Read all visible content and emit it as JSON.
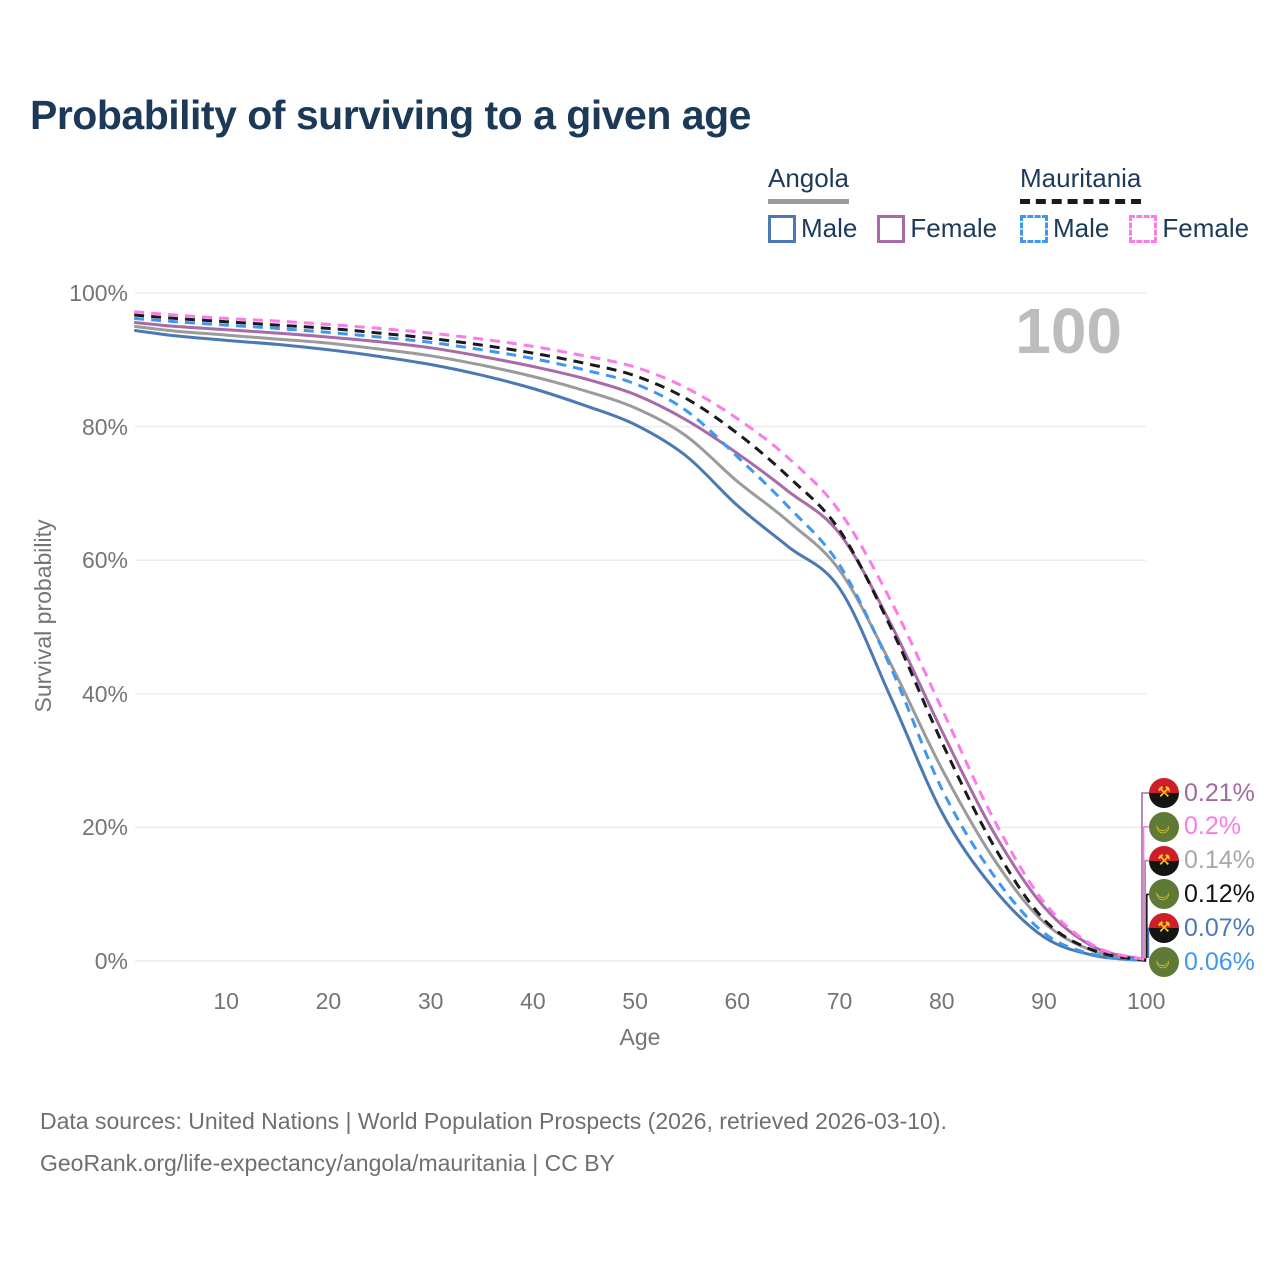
{
  "title": "Probability of surviving to a given age",
  "age_counter": "100",
  "legend": {
    "groups": [
      {
        "name": "Angola",
        "line_style": "solid",
        "underline_color": "#9b9b9b",
        "items": [
          {
            "label": "Male",
            "color": "#4c79b5"
          },
          {
            "label": "Female",
            "color": "#a86ba8"
          }
        ]
      },
      {
        "name": "Mauritania",
        "line_style": "dashed",
        "underline_color": "#1a1a1a",
        "items": [
          {
            "label": "Male",
            "color": "#3f97f2"
          },
          {
            "label": "Female",
            "color": "#fb7be8"
          }
        ]
      }
    ]
  },
  "axes": {
    "y_title": "Survival probability",
    "x_title": "Age",
    "y_ticks": [
      {
        "label": "100%",
        "value": 100
      },
      {
        "label": "80%",
        "value": 80
      },
      {
        "label": "60%",
        "value": 60
      },
      {
        "label": "40%",
        "value": 40
      },
      {
        "label": "20%",
        "value": 20
      },
      {
        "label": "0%",
        "value": 0
      }
    ],
    "x_ticks": [
      {
        "label": "10",
        "value": 10
      },
      {
        "label": "20",
        "value": 20
      },
      {
        "label": "30",
        "value": 30
      },
      {
        "label": "40",
        "value": 40
      },
      {
        "label": "50",
        "value": 50
      },
      {
        "label": "60",
        "value": 60
      },
      {
        "label": "70",
        "value": 70
      },
      {
        "label": "80",
        "value": 80
      },
      {
        "label": "90",
        "value": 90
      },
      {
        "label": "100",
        "value": 100
      }
    ],
    "x_range": [
      1,
      100
    ],
    "y_range": [
      0,
      100
    ],
    "grid": "horizontal-only"
  },
  "chart_data": {
    "type": "line",
    "title": "Probability of surviving to a given age",
    "xlabel": "Age",
    "ylabel": "Survival probability",
    "x": [
      1,
      5,
      10,
      15,
      20,
      25,
      30,
      35,
      40,
      45,
      50,
      55,
      60,
      65,
      70,
      75,
      80,
      85,
      90,
      95,
      100
    ],
    "series": [
      {
        "name": "Angola Male",
        "country": "Angola",
        "sex": "Male",
        "color": "#4c79b5",
        "dashed": false,
        "end_label": "0.07%",
        "values": [
          94.4,
          93.6,
          92.9,
          92.3,
          91.5,
          90.5,
          89.3,
          87.7,
          85.7,
          83.2,
          80.3,
          75.6,
          68.2,
          62.0,
          55.8,
          39.5,
          22.3,
          11.0,
          3.6,
          0.8,
          0.07
        ]
      },
      {
        "name": "Angola",
        "country": "Angola",
        "sex": "Both",
        "color": "#9b9b9b",
        "dashed": false,
        "end_label": "0.14%",
        "values": [
          95.0,
          94.3,
          93.7,
          93.1,
          92.5,
          91.6,
          90.6,
          89.2,
          87.5,
          85.4,
          82.8,
          78.6,
          71.8,
          65.8,
          58.5,
          44.5,
          28.8,
          15.5,
          5.8,
          1.4,
          0.14
        ]
      },
      {
        "name": "Angola Female",
        "country": "Angola",
        "sex": "Female",
        "color": "#a86ba8",
        "dashed": false,
        "end_label": "0.21%",
        "values": [
          95.6,
          95.0,
          94.5,
          94.0,
          93.4,
          92.7,
          91.8,
          90.5,
          89.0,
          87.2,
          84.8,
          81.0,
          76.0,
          70.3,
          64.0,
          50.5,
          34.5,
          19.5,
          8.1,
          2.0,
          0.21
        ]
      },
      {
        "name": "Mauritania Male",
        "country": "Mauritania",
        "sex": "Male",
        "color": "#3f97f2",
        "dashed": true,
        "end_label": "0.06%",
        "values": [
          96.2,
          95.7,
          95.2,
          94.7,
          94.1,
          93.4,
          92.6,
          91.5,
          90.2,
          88.5,
          86.4,
          82.4,
          75.5,
          68.0,
          59.3,
          44.0,
          25.8,
          13.0,
          4.2,
          0.9,
          0.06
        ]
      },
      {
        "name": "Mauritania",
        "country": "Mauritania",
        "sex": "Both",
        "color": "#1a1a1a",
        "dashed": true,
        "end_label": "0.12%",
        "values": [
          96.7,
          96.2,
          95.7,
          95.2,
          94.7,
          94.0,
          93.2,
          92.2,
          91.0,
          89.5,
          87.6,
          84.2,
          79.0,
          72.5,
          64.5,
          50.0,
          32.8,
          17.5,
          6.2,
          1.5,
          0.12
        ]
      },
      {
        "name": "Mauritania Female",
        "country": "Mauritania",
        "sex": "Female",
        "color": "#fb7be8",
        "dashed": true,
        "end_label": "0.2%",
        "values": [
          97.2,
          96.7,
          96.2,
          95.8,
          95.3,
          94.7,
          94.0,
          93.1,
          92.0,
          90.6,
          88.9,
          85.8,
          81.2,
          75.3,
          67.3,
          54.0,
          37.8,
          21.5,
          8.8,
          2.2,
          0.2
        ]
      }
    ]
  },
  "end_labels": [
    {
      "flag": "angola",
      "series": "Angola Female",
      "value": "0.21%",
      "text_color": "#a06ba0",
      "line_color": "#a86ba8"
    },
    {
      "flag": "mauritania",
      "series": "Mauritania Female",
      "value": "0.2%",
      "text_color": "#fb7be8",
      "line_color": "#fb7be8"
    },
    {
      "flag": "angola",
      "series": "Angola",
      "value": "0.14%",
      "text_color": "#a8a8a8",
      "line_color": "#9b9b9b"
    },
    {
      "flag": "mauritania",
      "series": "Mauritania",
      "value": "0.12%",
      "text_color": "#141414",
      "line_color": "#1a1a1a"
    },
    {
      "flag": "angola",
      "series": "Angola Male",
      "value": "0.07%",
      "text_color": "#4c79b5",
      "line_color": "#4c79b5"
    },
    {
      "flag": "mauritania",
      "series": "Mauritania Male",
      "value": "0.06%",
      "text_color": "#3f97f2",
      "line_color": "#3f97f2"
    }
  ],
  "footer": {
    "line1": "Data sources: United Nations | World Population Prospects (2026, retrieved 2026-03-10).",
    "line2": "GeoRank.org/life-expectancy/angola/mauritania | CC BY"
  },
  "colors": {
    "title": "#1c3a57",
    "axis_text": "#757575",
    "grid": "#ececec",
    "watermark": "#bdbdbd",
    "footer": "#6f6f6f"
  }
}
